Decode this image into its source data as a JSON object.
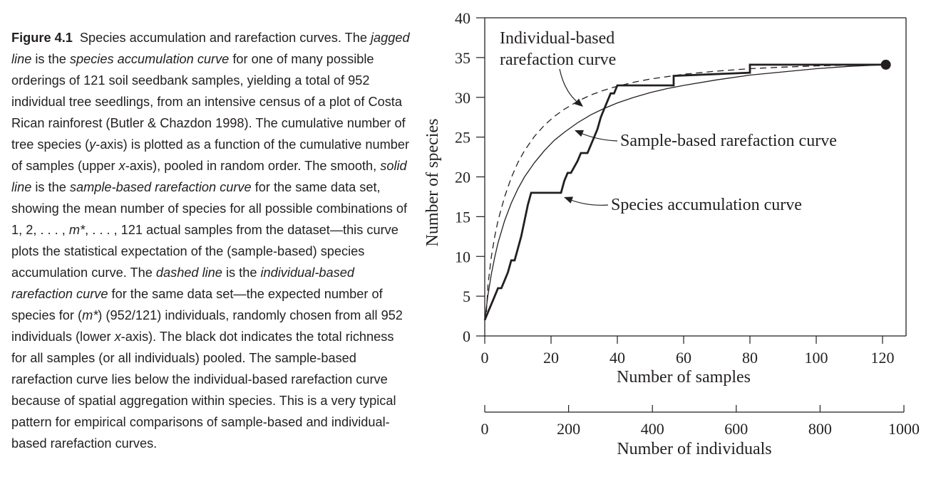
{
  "caption": {
    "label": "Figure 4.1",
    "segments": [
      {
        "t": "Species accumulation and rarefaction curves. The ",
        "i": false
      },
      {
        "t": "jagged line",
        "i": true
      },
      {
        "t": " is the ",
        "i": false
      },
      {
        "t": "species accumulation curve",
        "i": true
      },
      {
        "t": " for one of many possible orderings of 121 soil seedbank samples, yielding a total of 952 individual tree seedlings, from an intensive census of a plot of Costa Rican rainforest (Butler & Chazdon 1998). The cumulative number of tree species (",
        "i": false
      },
      {
        "t": "y",
        "i": true
      },
      {
        "t": "-axis) is plotted as a function of the cumulative number of samples (upper ",
        "i": false
      },
      {
        "t": "x",
        "i": true
      },
      {
        "t": "-axis), pooled in random order. The smooth, ",
        "i": false
      },
      {
        "t": "solid line",
        "i": true
      },
      {
        "t": " is the ",
        "i": false
      },
      {
        "t": "sample-based rarefaction curve",
        "i": true
      },
      {
        "t": " for the same data set, showing the mean number of species for all possible combinations of 1, 2, . . . , ",
        "i": false
      },
      {
        "t": "m*",
        "i": true
      },
      {
        "t": ", . . . , 121 actual samples from the dataset—this curve plots the statistical expectation of the (sample-based) species accumulation curve. The ",
        "i": false
      },
      {
        "t": "dashed line",
        "i": true
      },
      {
        "t": " is the ",
        "i": false
      },
      {
        "t": "individual-based rarefaction curve",
        "i": true
      },
      {
        "t": " for the same data set—the expected number of species for (",
        "i": false
      },
      {
        "t": "m*",
        "i": true
      },
      {
        "t": ") (952/121) individuals, randomly chosen from all 952 individuals (lower ",
        "i": false
      },
      {
        "t": "x",
        "i": true
      },
      {
        "t": "-axis). The black dot indicates the total richness for all samples (or all individuals) pooled. The sample-based rarefaction curve lies below the individual-based rarefaction curve because of spatial aggregation within species. This is a very typical pattern for empirical comparisons of sample-based and individual-based rarefaction curves.",
        "i": false
      }
    ]
  },
  "chart_data": {
    "type": "line",
    "ylabel": "Number of species",
    "xlabel": "Number of samples",
    "x2label": "Number of individuals",
    "xlim": [
      0,
      125
    ],
    "ylim": [
      0,
      40
    ],
    "x2lim": [
      0,
      1000
    ],
    "xticks": [
      0,
      20,
      40,
      60,
      80,
      100,
      120
    ],
    "yticks": [
      0,
      5,
      10,
      15,
      20,
      25,
      30,
      35,
      40
    ],
    "x2ticks": [
      0,
      200,
      400,
      600,
      800,
      1000
    ],
    "series": [
      {
        "name": "Species accumulation curve",
        "style": "jagged",
        "x": [
          0,
          1,
          1,
          2,
          2,
          3,
          3,
          4,
          4,
          5,
          5,
          6,
          6,
          7,
          7,
          8,
          8,
          9,
          9,
          10,
          10,
          11,
          11,
          12,
          12,
          13,
          13,
          14,
          14,
          23,
          23,
          24,
          24,
          25,
          25,
          26,
          26,
          28,
          28,
          29,
          29,
          31,
          31,
          32,
          32,
          33,
          33,
          34,
          34,
          35,
          35,
          36,
          36,
          37,
          37,
          38,
          38,
          39,
          39,
          40,
          40,
          57,
          57,
          80,
          80,
          121
        ],
        "y": [
          2,
          3,
          3,
          4,
          4,
          5,
          5,
          6,
          6,
          6,
          6,
          7,
          7,
          8,
          8,
          9.5,
          9.5,
          9.5,
          9.5,
          11,
          11,
          12.5,
          12.5,
          14.5,
          14.5,
          16.5,
          16.5,
          18,
          18,
          18,
          18,
          19.5,
          19.5,
          20.5,
          20.5,
          20.5,
          20.5,
          22,
          22,
          23,
          23,
          23,
          23,
          24,
          24,
          25,
          25,
          26,
          26,
          27.5,
          27.5,
          28.5,
          28.5,
          29.5,
          29.5,
          30.5,
          30.5,
          30.5,
          30.5,
          31.5,
          31.5,
          31.5,
          32.7,
          33.1,
          34.1,
          34.1
        ]
      },
      {
        "name": "Sample-based rarefaction curve",
        "style": "solid",
        "x": [
          0,
          1,
          2,
          3,
          4,
          6,
          8,
          10,
          12,
          15,
          18,
          21,
          24,
          28,
          32,
          36,
          40,
          45,
          50,
          55,
          60,
          70,
          80,
          90,
          100,
          110,
          121
        ],
        "y": [
          2.0,
          5.2,
          7.8,
          9.9,
          11.7,
          14.5,
          16.7,
          18.5,
          20.0,
          21.8,
          23.3,
          24.6,
          25.6,
          26.8,
          27.8,
          28.6,
          29.3,
          30.0,
          30.6,
          31.1,
          31.5,
          32.2,
          32.8,
          33.2,
          33.6,
          33.9,
          34.1
        ]
      },
      {
        "name": "Individual-based rarefaction curve",
        "style": "dashed",
        "x": [
          0.5,
          1,
          2,
          3,
          4,
          6,
          8,
          10,
          12,
          15,
          18,
          21,
          24,
          28,
          32,
          36,
          40,
          45,
          50,
          55,
          60,
          70,
          80,
          90,
          100,
          110,
          121
        ],
        "y": [
          3.0,
          6.5,
          10.0,
          12.5,
          14.5,
          17.5,
          19.9,
          21.8,
          23.3,
          25.1,
          26.5,
          27.6,
          28.5,
          29.5,
          30.3,
          30.9,
          31.4,
          31.9,
          32.3,
          32.6,
          32.9,
          33.3,
          33.6,
          33.8,
          33.95,
          34.05,
          34.1
        ]
      }
    ],
    "total_point": {
      "x": 121,
      "y": 34.1
    },
    "annotations": [
      {
        "lines": [
          "Individual-based",
          "rarefaction curve"
        ],
        "target": "Individual-based rarefaction curve"
      },
      {
        "lines": [
          "Sample-based rarefaction curve"
        ],
        "target": "Sample-based rarefaction curve"
      },
      {
        "lines": [
          "Species accumulation curve"
        ],
        "target": "Species accumulation curve"
      }
    ]
  }
}
